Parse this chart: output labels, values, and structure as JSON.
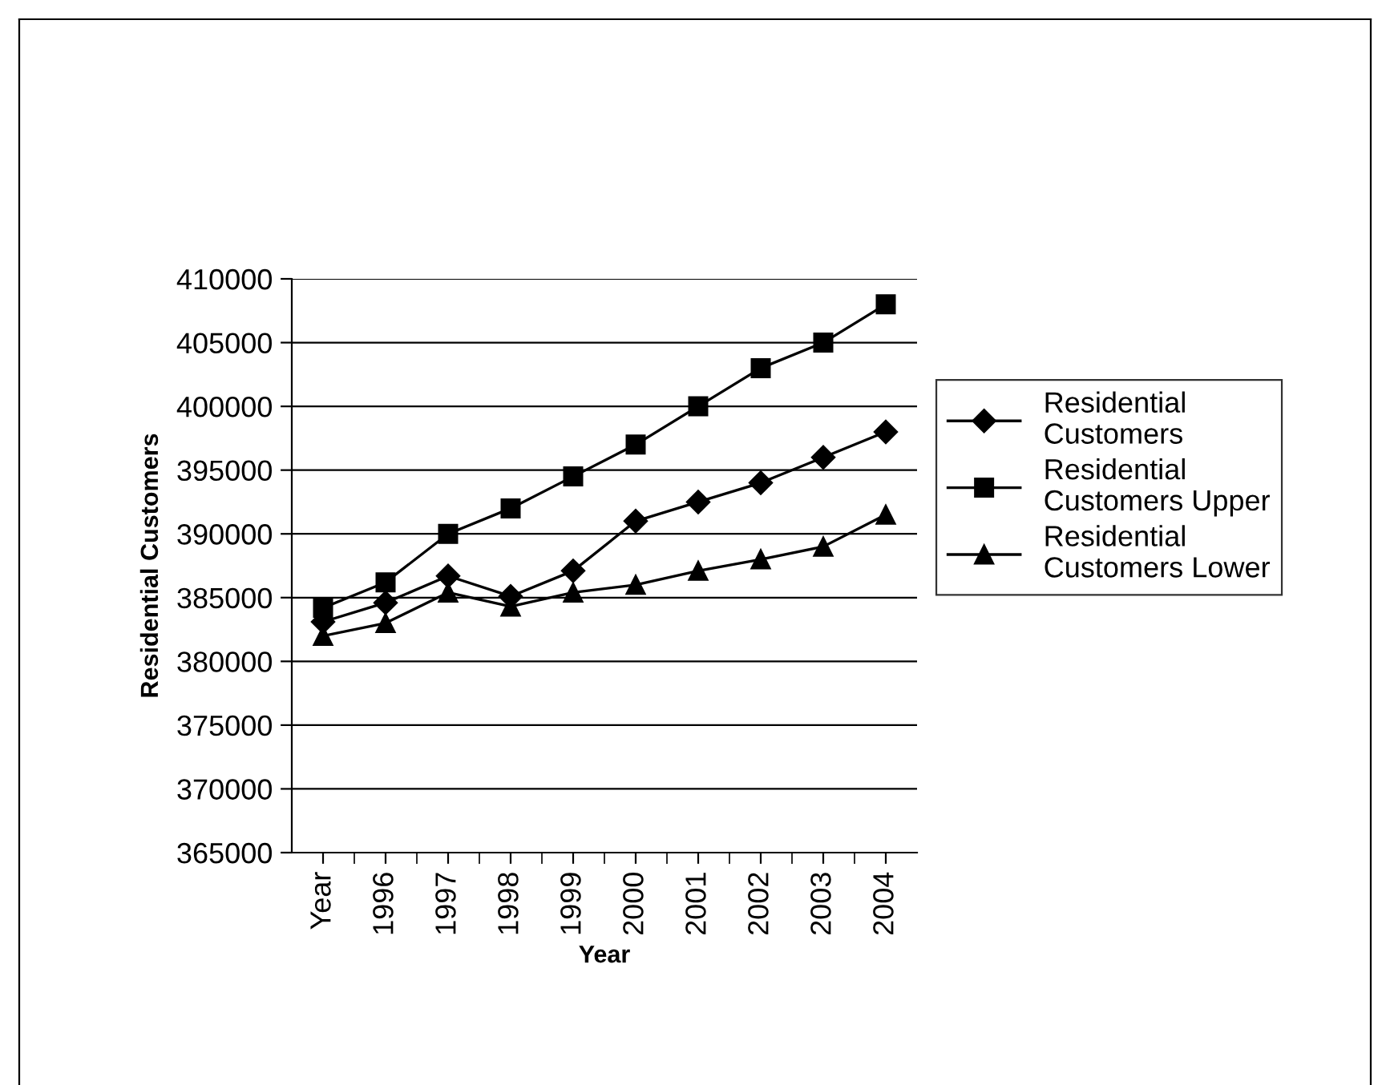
{
  "chart_data": {
    "type": "line",
    "xlabel": "Year",
    "ylabel": "Residential Customers",
    "categories": [
      "Year",
      "1996",
      "1997",
      "1998",
      "1999",
      "2000",
      "2001",
      "2002",
      "2003",
      "2004"
    ],
    "series": [
      {
        "name": "Residential Customers",
        "color": "#000000",
        "marker": "diamond",
        "values": [
          383100,
          384600,
          386700,
          385100,
          387100,
          391000,
          392500,
          394000,
          396000,
          398000
        ]
      },
      {
        "name": "Residential Customers Upper",
        "color": "#000000",
        "marker": "square",
        "values": [
          384200,
          386200,
          390000,
          392000,
          394500,
          397000,
          400000,
          403000,
          405000,
          408000
        ]
      },
      {
        "name": "Residential Customers Lower",
        "color": "#000000",
        "marker": "triangle",
        "values": [
          382000,
          383000,
          385400,
          384300,
          385400,
          386000,
          387100,
          388000,
          389000,
          391500
        ]
      }
    ],
    "ylim": [
      365000,
      410000
    ],
    "yticks": [
      365000,
      370000,
      375000,
      380000,
      385000,
      390000,
      395000,
      400000,
      405000,
      410000
    ],
    "grid": "y",
    "legend": "right",
    "line_style": "solid"
  }
}
